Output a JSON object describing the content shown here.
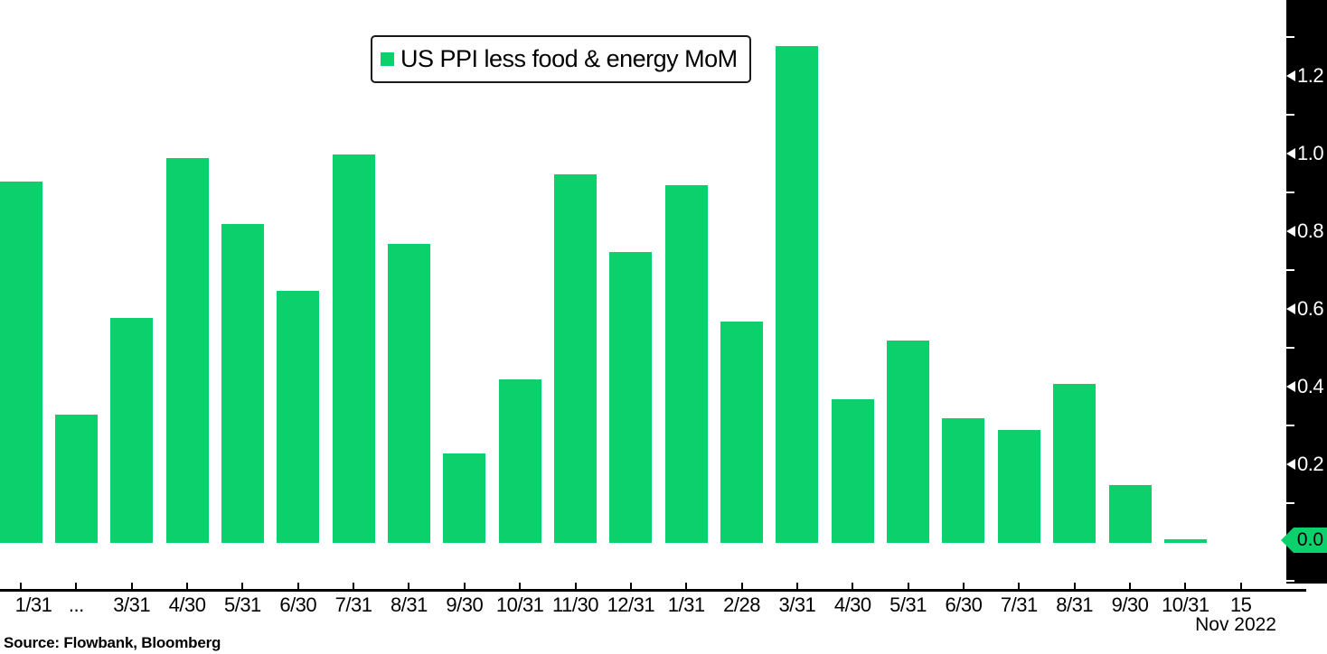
{
  "legend": {
    "label": "US PPI less food & energy MoM"
  },
  "source_note": "Source: Flowbank, Bloomberg",
  "period_label": "Nov 2022",
  "current_value_tag": "0.0",
  "colors": {
    "bar": "#0bd06c",
    "axis_band": "#000000",
    "current_tag": "#0bd06c",
    "legend_marker": "#0bd06c"
  },
  "chart_data": {
    "type": "bar",
    "title": "US PPI less food & energy MoM",
    "legend_entries": [
      "US PPI less food & energy MoM"
    ],
    "legend_position": "top-center",
    "x_tick_labels": [
      "1/31",
      "...",
      "3/31",
      "4/30",
      "5/31",
      "6/30",
      "7/31",
      "8/31",
      "9/30",
      "10/31",
      "11/30",
      "12/31",
      "1/31",
      "2/28",
      "3/31",
      "4/30",
      "5/31",
      "6/30",
      "7/31",
      "8/31",
      "9/30",
      "10/31",
      "15"
    ],
    "x_axis_end_note": "Nov 2022",
    "values": [
      0.93,
      0.33,
      0.58,
      0.99,
      0.82,
      0.65,
      1.0,
      0.77,
      0.23,
      0.42,
      0.95,
      0.75,
      0.92,
      0.57,
      1.28,
      0.37,
      0.52,
      0.32,
      0.29,
      0.41,
      0.15,
      0.01
    ],
    "y_ticks": [
      "0.0",
      "0.2",
      "0.4",
      "0.6",
      "0.8",
      "1.0",
      "1.2"
    ],
    "y_minor_tick_step": 0.1,
    "ylim": [
      -0.12,
      1.4
    ],
    "y_axis_side": "right",
    "y_axis_current_value": "0.0",
    "grid": false,
    "source": "Source: Flowbank, Bloomberg"
  }
}
